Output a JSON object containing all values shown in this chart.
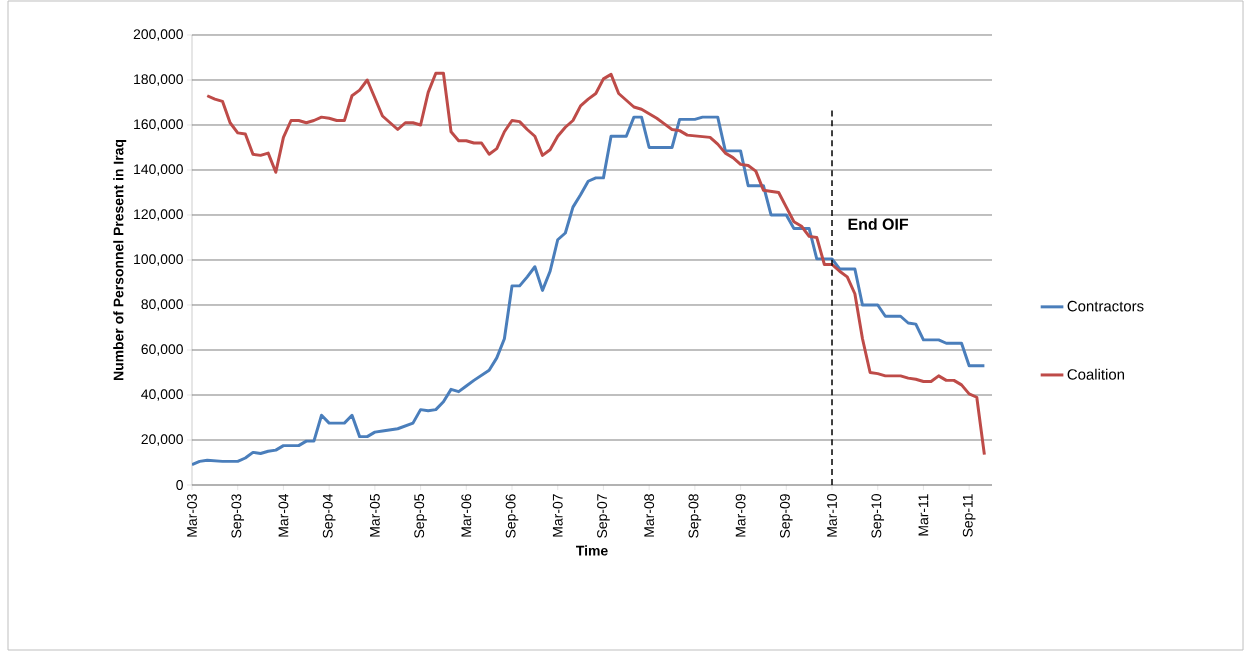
{
  "chart_data": {
    "type": "line",
    "xlabel": "Time",
    "ylabel": "Number of Personnel Present in Iraq",
    "xlim": [
      "2003-03",
      "2011-12"
    ],
    "xticks": [
      {
        "value": "2003-03",
        "label": "Mar-03"
      },
      {
        "value": "2003-09",
        "label": "Sep-03"
      },
      {
        "value": "2004-03",
        "label": "Mar-04"
      },
      {
        "value": "2004-09",
        "label": "Sep-04"
      },
      {
        "value": "2005-03",
        "label": "Mar-05"
      },
      {
        "value": "2005-09",
        "label": "Sep-05"
      },
      {
        "value": "2006-03",
        "label": "Mar-06"
      },
      {
        "value": "2006-09",
        "label": "Sep-06"
      },
      {
        "value": "2007-03",
        "label": "Mar-07"
      },
      {
        "value": "2007-09",
        "label": "Sep-07"
      },
      {
        "value": "2008-03",
        "label": "Mar-08"
      },
      {
        "value": "2008-09",
        "label": "Sep-08"
      },
      {
        "value": "2009-03",
        "label": "Mar-09"
      },
      {
        "value": "2009-09",
        "label": "Sep-09"
      },
      {
        "value": "2010-03",
        "label": "Mar-10"
      },
      {
        "value": "2010-09",
        "label": "Sep-10"
      },
      {
        "value": "2011-03",
        "label": "Mar-11"
      },
      {
        "value": "2011-09",
        "label": "Sep-11"
      }
    ],
    "ylim": [
      0,
      200000
    ],
    "yticks": [
      0,
      {
        "value": 20000,
        "label": "20,000"
      },
      {
        "value": 40000,
        "label": "40,000"
      },
      {
        "value": 60000,
        "label": "60,000"
      },
      {
        "value": 80000,
        "label": "80,000"
      },
      {
        "value": 100000,
        "label": "100,000"
      },
      {
        "value": 120000,
        "label": "120,000"
      },
      {
        "value": 140000,
        "label": "140,000"
      },
      {
        "value": 160000,
        "label": "160,000"
      },
      {
        "value": 180000,
        "label": "180,000"
      },
      {
        "value": 200000,
        "label": "200,000"
      }
    ],
    "grid": "y",
    "legend": "right",
    "marker": "none",
    "line_style": "solid",
    "ref_lines": [
      {
        "axis": "x",
        "value": "2010-03",
        "label": "End OIF",
        "color": "#000000",
        "line_style": "dashed"
      }
    ],
    "series": [
      {
        "name": "Contractors",
        "color": "#4a7ebb",
        "x": [
          "2003-03",
          "2003-04",
          "2003-05",
          "2003-07",
          "2003-09",
          "2003-10",
          "2003-11",
          "2003-12",
          "2004-01",
          "2004-02",
          "2004-03",
          "2004-05",
          "2004-06",
          "2004-07",
          "2004-08",
          "2004-09",
          "2004-11",
          "2004-12",
          "2005-01",
          "2005-02",
          "2005-03",
          "2005-04",
          "2005-06",
          "2005-08",
          "2005-09",
          "2005-10",
          "2005-11",
          "2005-12",
          "2006-01",
          "2006-02",
          "2006-03",
          "2006-04",
          "2006-06",
          "2006-07",
          "2006-08",
          "2006-09",
          "2006-10",
          "2006-11",
          "2006-12",
          "2007-01",
          "2007-02",
          "2007-03",
          "2007-04",
          "2007-05",
          "2007-06",
          "2007-07",
          "2007-08",
          "2007-09",
          "2007-10",
          "2007-12",
          "2008-01",
          "2008-02",
          "2008-03",
          "2008-06",
          "2008-07",
          "2008-09",
          "2008-10",
          "2008-12",
          "2009-01",
          "2009-03",
          "2009-04",
          "2009-06",
          "2009-07",
          "2009-09",
          "2009-10",
          "2009-12",
          "2010-01",
          "2010-03",
          "2010-04",
          "2010-06",
          "2010-07",
          "2010-09",
          "2010-10",
          "2010-12",
          "2011-01",
          "2011-02",
          "2011-03",
          "2011-05",
          "2011-06",
          "2011-08",
          "2011-09",
          "2011-11"
        ],
        "values": [
          9000,
          10500,
          11000,
          10500,
          10500,
          12000,
          14500,
          14000,
          15000,
          15500,
          17500,
          17500,
          19500,
          19500,
          31000,
          27500,
          27500,
          31000,
          21500,
          21500,
          23500,
          24000,
          25000,
          27500,
          33500,
          33000,
          33500,
          37000,
          42500,
          41500,
          44000,
          46500,
          51000,
          56500,
          65000,
          88500,
          88500,
          92500,
          97000,
          86500,
          95000,
          109000,
          112000,
          123500,
          129000,
          135000,
          136500,
          136500,
          155000,
          155000,
          163500,
          163500,
          150000,
          150000,
          162500,
          162500,
          163500,
          163500,
          148500,
          148500,
          133000,
          133000,
          120000,
          120000,
          114000,
          114000,
          100500,
          100500,
          96000,
          96000,
          80000,
          80000,
          75000,
          75000,
          72000,
          71500,
          64500,
          64500,
          63000,
          63000,
          53000,
          53000
        ]
      },
      {
        "name": "Coalition",
        "color": "#be4b48",
        "x": [
          "2003-05",
          "2003-06",
          "2003-07",
          "2003-08",
          "2003-09",
          "2003-10",
          "2003-11",
          "2003-12",
          "2004-01",
          "2004-02",
          "2004-03",
          "2004-04",
          "2004-05",
          "2004-06",
          "2004-07",
          "2004-08",
          "2004-09",
          "2004-10",
          "2004-11",
          "2004-12",
          "2005-01",
          "2005-02",
          "2005-03",
          "2005-04",
          "2005-05",
          "2005-06",
          "2005-07",
          "2005-08",
          "2005-09",
          "2005-10",
          "2005-11",
          "2005-12",
          "2006-01",
          "2006-02",
          "2006-03",
          "2006-04",
          "2006-05",
          "2006-06",
          "2006-07",
          "2006-08",
          "2006-09",
          "2006-10",
          "2006-11",
          "2006-12",
          "2007-01",
          "2007-02",
          "2007-03",
          "2007-04",
          "2007-05",
          "2007-06",
          "2007-07",
          "2007-08",
          "2007-09",
          "2007-10",
          "2007-11",
          "2007-12",
          "2008-01",
          "2008-02",
          "2008-03",
          "2008-04",
          "2008-05",
          "2008-06",
          "2008-07",
          "2008-08",
          "2008-11",
          "2008-12",
          "2009-01",
          "2009-02",
          "2009-03",
          "2009-04",
          "2009-05",
          "2009-06",
          "2009-08",
          "2009-09",
          "2009-10",
          "2009-11",
          "2009-12",
          "2010-01",
          "2010-02",
          "2010-03",
          "2010-04",
          "2010-05",
          "2010-06",
          "2010-07",
          "2010-08",
          "2010-09",
          "2010-10",
          "2010-12",
          "2011-01",
          "2011-02",
          "2011-03",
          "2011-04",
          "2011-05",
          "2011-06",
          "2011-07",
          "2011-08",
          "2011-09",
          "2011-10",
          "2011-11"
        ],
        "values": [
          173000,
          171500,
          170500,
          161000,
          156500,
          156000,
          147000,
          146500,
          147500,
          139000,
          154500,
          162000,
          162000,
          161000,
          162000,
          163500,
          163000,
          162000,
          162000,
          173000,
          175500,
          180000,
          172000,
          164000,
          161000,
          158000,
          161000,
          161000,
          160000,
          174500,
          183000,
          183000,
          157000,
          153000,
          153000,
          152000,
          152000,
          147000,
          149500,
          157000,
          162000,
          161500,
          158000,
          155000,
          146500,
          149000,
          155000,
          159000,
          162000,
          168500,
          171500,
          174000,
          180500,
          182500,
          174000,
          171000,
          168000,
          167000,
          165000,
          163000,
          160500,
          158000,
          157500,
          155500,
          154500,
          151500,
          147500,
          145500,
          142500,
          142000,
          139500,
          131000,
          130000,
          123500,
          117000,
          115000,
          110500,
          110000,
          98000,
          98000,
          95000,
          92500,
          85000,
          65000,
          50000,
          49500,
          48500,
          48500,
          47500,
          47000,
          46000,
          46000,
          48500,
          46500,
          46500,
          44500,
          40500,
          39000,
          13500
        ]
      }
    ]
  }
}
